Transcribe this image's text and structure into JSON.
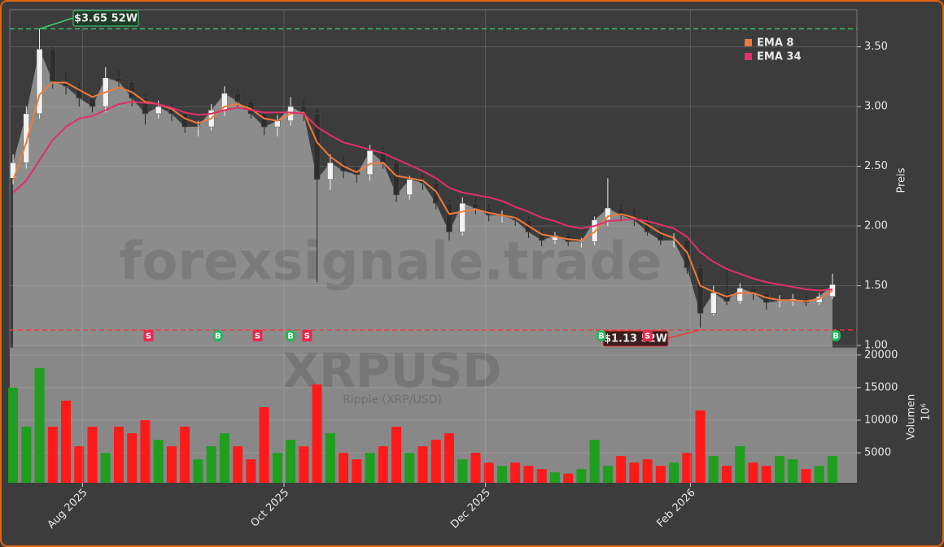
{
  "chart_data": [
    {
      "type": "candlestick",
      "watermark": "forexsignale.trade",
      "symbol": "XRPUSD",
      "subtitle": "Ripple (XRP/USD)",
      "ylabel": "Preis",
      "xlim": [
        0,
        256.4
      ],
      "ylim": [
        0.98,
        3.81
      ],
      "yticks": [
        {
          "value": 1,
          "label": "1.00"
        },
        {
          "value": 1.5,
          "label": "1.50"
        },
        {
          "value": 2,
          "label": "2.00"
        },
        {
          "value": 2.5,
          "label": "2.50"
        },
        {
          "value": 3,
          "label": "3.00"
        },
        {
          "value": 3.5,
          "label": "3.50"
        }
      ],
      "grid": true,
      "up_color": "#f2f2f2",
      "down_color": "#2e2e2e",
      "area_color": "#8c8c8c",
      "x": [
        1,
        5,
        9,
        13,
        17,
        21,
        25,
        29,
        33,
        37,
        41,
        45,
        49,
        53,
        57,
        61,
        65,
        69,
        73,
        77,
        81,
        85,
        89,
        93,
        97,
        101,
        105,
        109,
        113,
        117,
        121,
        125,
        129,
        133,
        137,
        141,
        145,
        149,
        153,
        157,
        161,
        165,
        169,
        173,
        177,
        181,
        185,
        189,
        193,
        197,
        201,
        205,
        209,
        213,
        217,
        221,
        225,
        229,
        233,
        237,
        241,
        245,
        249
      ],
      "open": [
        2.4,
        2.53,
        2.94,
        3.48,
        3.21,
        3.17,
        3.07,
        3.0,
        3.24,
        3.21,
        3.07,
        2.94,
        3.0,
        2.94,
        2.83,
        2.83,
        2.97,
        3.11,
        3.04,
        2.94,
        2.83,
        2.88,
        3.0,
        2.94,
        2.39,
        2.53,
        2.46,
        2.43,
        2.63,
        2.53,
        2.26,
        2.39,
        2.36,
        2.19,
        1.95,
        2.19,
        2.15,
        2.09,
        2.09,
        2.05,
        1.95,
        1.88,
        1.92,
        1.87,
        1.87,
        2.05,
        2.15,
        2.09,
        2.05,
        1.95,
        1.88,
        1.88,
        1.65,
        1.27,
        1.44,
        1.37,
        1.48,
        1.44,
        1.36,
        1.37,
        1.39,
        1.36,
        1.41
      ],
      "high": [
        2.6,
        3.0,
        3.65,
        3.5,
        3.28,
        3.2,
        3.1,
        3.33,
        3.3,
        3.22,
        3.1,
        3.05,
        3.02,
        2.95,
        2.88,
        3.02,
        3.17,
        3.14,
        3.06,
        2.96,
        2.93,
        3.08,
        3.05,
        2.98,
        2.6,
        2.58,
        2.5,
        2.68,
        2.66,
        2.56,
        2.42,
        2.44,
        2.4,
        2.22,
        2.24,
        2.24,
        2.18,
        2.13,
        2.1,
        2.08,
        1.98,
        1.95,
        1.94,
        1.9,
        2.08,
        2.4,
        2.18,
        2.14,
        2.08,
        1.98,
        1.94,
        1.9,
        1.68,
        1.5,
        1.65,
        1.52,
        1.5,
        1.46,
        1.42,
        1.43,
        1.42,
        1.44,
        1.6
      ],
      "low": [
        2.35,
        2.48,
        2.9,
        3.15,
        3.1,
        3.0,
        2.95,
        2.95,
        3.15,
        3.0,
        2.85,
        2.9,
        2.88,
        2.78,
        2.75,
        2.8,
        2.92,
        3.0,
        2.9,
        2.76,
        2.75,
        2.84,
        2.88,
        1.53,
        2.3,
        2.4,
        2.36,
        2.38,
        2.48,
        2.2,
        2.22,
        2.3,
        2.14,
        1.88,
        1.92,
        2.1,
        2.04,
        2.03,
        2.0,
        1.9,
        1.83,
        1.85,
        1.83,
        1.82,
        1.84,
        2.0,
        2.04,
        2.0,
        1.92,
        1.84,
        1.82,
        1.6,
        1.15,
        1.25,
        1.34,
        1.35,
        1.38,
        1.3,
        1.32,
        1.33,
        1.33,
        1.34,
        1.39
      ],
      "close": [
        2.53,
        2.94,
        3.48,
        3.21,
        3.17,
        3.07,
        3.0,
        3.24,
        3.21,
        3.07,
        2.94,
        3.0,
        2.94,
        2.83,
        2.83,
        2.97,
        3.11,
        3.04,
        2.94,
        2.83,
        2.88,
        3.0,
        2.94,
        2.39,
        2.53,
        2.46,
        2.43,
        2.63,
        2.53,
        2.26,
        2.39,
        2.36,
        2.19,
        1.95,
        2.19,
        2.15,
        2.09,
        2.09,
        2.05,
        1.95,
        1.88,
        1.92,
        1.87,
        1.87,
        2.05,
        2.15,
        2.09,
        2.05,
        1.95,
        1.88,
        1.88,
        1.65,
        1.27,
        1.44,
        1.37,
        1.48,
        1.44,
        1.36,
        1.37,
        1.39,
        1.36,
        1.41,
        1.51
      ],
      "series": [
        {
          "name": "EMA 8",
          "color": "#f07a3a",
          "values": [
            2.38,
            2.7,
            3.1,
            3.2,
            3.2,
            3.14,
            3.08,
            3.12,
            3.16,
            3.12,
            3.04,
            3.02,
            2.98,
            2.9,
            2.86,
            2.9,
            3.0,
            3.02,
            2.98,
            2.9,
            2.88,
            2.94,
            2.95,
            2.7,
            2.58,
            2.5,
            2.45,
            2.52,
            2.53,
            2.42,
            2.4,
            2.38,
            2.29,
            2.1,
            2.12,
            2.14,
            2.11,
            2.09,
            2.07,
            2.0,
            1.93,
            1.91,
            1.89,
            1.88,
            1.95,
            2.08,
            2.1,
            2.07,
            2.01,
            1.94,
            1.9,
            1.78,
            1.5,
            1.45,
            1.41,
            1.44,
            1.44,
            1.4,
            1.38,
            1.38,
            1.37,
            1.39,
            1.46
          ]
        },
        {
          "name": "EMA 34",
          "color": "#e0306a",
          "values": [
            2.28,
            2.38,
            2.55,
            2.72,
            2.83,
            2.9,
            2.92,
            2.97,
            3.02,
            3.04,
            3.03,
            3.02,
            2.99,
            2.95,
            2.93,
            2.94,
            2.97,
            2.99,
            2.97,
            2.95,
            2.95,
            2.95,
            2.94,
            2.83,
            2.76,
            2.7,
            2.67,
            2.64,
            2.61,
            2.56,
            2.51,
            2.46,
            2.4,
            2.32,
            2.28,
            2.26,
            2.24,
            2.21,
            2.16,
            2.12,
            2.07,
            2.04,
            2.0,
            1.98,
            2.0,
            2.04,
            2.05,
            2.06,
            2.04,
            2.01,
            1.98,
            1.91,
            1.78,
            1.7,
            1.64,
            1.6,
            1.56,
            1.53,
            1.51,
            1.49,
            1.47,
            1.46,
            1.47
          ]
        }
      ],
      "annotations": [
        {
          "value": 3.65,
          "label": "$3.65 52W",
          "x": 9,
          "color": "#3ecf6e"
        },
        {
          "value": 1.13,
          "label": "$1.13 52W",
          "x": 209,
          "color": "#f03a3a"
        }
      ],
      "signals": [
        {
          "x": 42,
          "label": "S",
          "color": "#e8294f"
        },
        {
          "x": 63,
          "label": "B",
          "color": "#22b85a"
        },
        {
          "x": 75,
          "label": "S",
          "color": "#e8294f"
        },
        {
          "x": 85,
          "label": "B",
          "color": "#22b85a"
        },
        {
          "x": 90,
          "label": "S",
          "color": "#e8294f"
        },
        {
          "x": 179,
          "label": "B",
          "color": "#22b85a"
        },
        {
          "x": 193,
          "label": "S",
          "color": "#e8294f"
        },
        {
          "x": 250,
          "label": "B",
          "color": "#22b85a"
        }
      ]
    },
    {
      "type": "bar",
      "ylabel": "Volumen",
      "ylabel_exponent": "10⁶",
      "xlim": [
        0,
        256.4
      ],
      "xticks": [
        {
          "value": 22,
          "label": "Aug 2025"
        },
        {
          "value": 83,
          "label": "Oct 2025"
        },
        {
          "value": 144,
          "label": "Dec 2025"
        },
        {
          "value": 206,
          "label": "Feb 2026"
        }
      ],
      "ylim": [
        400,
        21100
      ],
      "yticks": [
        5000,
        10000,
        15000,
        20000
      ],
      "up_color": "#1f9e1f",
      "down_color": "#ff1a1a",
      "x": [
        1,
        5,
        9,
        13,
        17,
        21,
        25,
        29,
        33,
        37,
        41,
        45,
        49,
        53,
        57,
        61,
        65,
        69,
        73,
        77,
        81,
        85,
        89,
        93,
        97,
        101,
        105,
        109,
        113,
        117,
        121,
        125,
        129,
        133,
        137,
        141,
        145,
        149,
        153,
        157,
        161,
        165,
        169,
        173,
        177,
        181,
        185,
        189,
        193,
        197,
        201,
        205,
        209,
        213,
        217,
        221,
        225,
        229,
        233,
        237,
        241,
        245,
        249
      ],
      "values": [
        15000,
        9000,
        18000,
        9000,
        13000,
        6000,
        9000,
        5000,
        9000,
        8000,
        10000,
        7000,
        6000,
        9000,
        4000,
        6000,
        8000,
        6000,
        4000,
        12000,
        5000,
        7000,
        6000,
        15500,
        8000,
        5000,
        4000,
        5000,
        6000,
        9000,
        5000,
        6000,
        7000,
        8000,
        4000,
        5000,
        3500,
        3000,
        3500,
        3000,
        2500,
        2000,
        1800,
        2500,
        7000,
        3000,
        4500,
        3500,
        4000,
        3000,
        3500,
        5000,
        11500,
        4500,
        3000,
        6000,
        3500,
        3000,
        4500,
        4000,
        2500,
        3000,
        4500
      ]
    }
  ]
}
